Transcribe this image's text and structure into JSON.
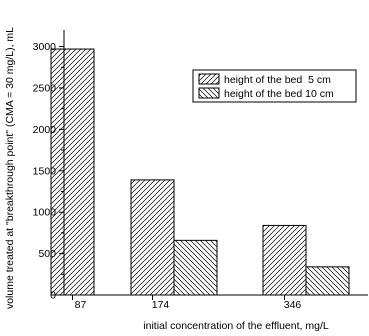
{
  "chart_data": {
    "type": "bar",
    "categories": [
      "87",
      "174",
      "346"
    ],
    "x": [
      87,
      174,
      346
    ],
    "series": [
      {
        "name": "height of the bed  5 cm",
        "pattern": "forward-hatch",
        "values": [
          2970,
          1390,
          840
        ]
      },
      {
        "name": "height of the bed 10 cm",
        "pattern": "back-hatch",
        "values": [
          null,
          660,
          340
        ]
      }
    ],
    "xlabel": "initial concentration of the effluent, mg/L",
    "ylabel": "volume treated at \"breakthrough point\" (CMA = 30 mg/L), mL",
    "ylim": [
      0,
      3200
    ],
    "yticks": [
      0,
      500,
      1000,
      1500,
      2000,
      2500,
      3000
    ],
    "legend_position": "top-right",
    "grid": false
  },
  "colors": {
    "axis": "#000000",
    "bar_fill": "#ffffff",
    "hatch": "#000000"
  }
}
